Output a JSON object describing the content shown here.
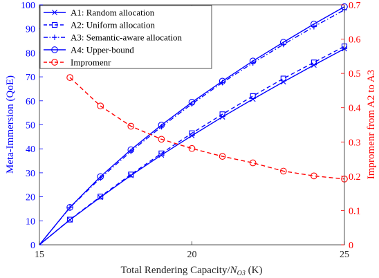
{
  "chart_data": {
    "type": "line",
    "xlabel_main": "Total Rendering Capacity/",
    "xlabel_var": "N",
    "xlabel_sub": "O3",
    "xlabel_unit": " (K)",
    "ylabel_left": "Meta-Immersion (QoE)",
    "ylabel_right": "Impromenr from A2 to A3",
    "xlim": [
      15,
      25
    ],
    "ylim_left": [
      0,
      100
    ],
    "ylim_right": [
      0,
      0.7
    ],
    "xticks": [
      "15",
      "20",
      "25"
    ],
    "yticks_left": [
      "0",
      "10",
      "20",
      "30",
      "40",
      "50",
      "60",
      "70",
      "80",
      "90",
      "100"
    ],
    "yticks_right": [
      "0",
      "0.1",
      "0.2",
      "0.3",
      "0.4",
      "0.5",
      "0.6",
      "0.7"
    ],
    "grid": false,
    "legend_position": "top-left",
    "x": [
      15,
      16,
      17,
      18,
      19,
      20,
      21,
      22,
      23,
      24,
      25
    ],
    "series": [
      {
        "name": "A1: Random allocation",
        "axis": "left",
        "color": "#0000ff",
        "dash": "solid",
        "marker": "x",
        "values": [
          0,
          10.4,
          19.8,
          28.9,
          37.4,
          45.5,
          53.3,
          60.7,
          67.9,
          74.9,
          81.7
        ]
      },
      {
        "name": "A2: Uniform allocation",
        "axis": "left",
        "color": "#0000ff",
        "dash": "dashed",
        "marker": "square",
        "values": [
          0,
          10.5,
          20.1,
          29.3,
          38.1,
          46.5,
          54.4,
          62.0,
          69.3,
          76.0,
          82.7
        ]
      },
      {
        "name": "A3: Semantic-aware allocation",
        "axis": "left",
        "color": "#0000ff",
        "dash": "dashdot",
        "marker": "plus",
        "values": [
          0,
          15.5,
          27.8,
          38.9,
          49.2,
          58.7,
          67.6,
          75.8,
          83.5,
          90.9,
          97.9
        ]
      },
      {
        "name": "A4: Upper-bound",
        "axis": "left",
        "color": "#0000ff",
        "dash": "solid",
        "marker": "circle",
        "values": [
          0,
          15.6,
          28.4,
          39.6,
          49.9,
          59.4,
          68.2,
          76.6,
          84.4,
          92.0,
          99.2
        ]
      },
      {
        "name": "Impromenr",
        "axis": "right",
        "color": "#ff0000",
        "dash": "dashed",
        "marker": "circle",
        "x": [
          16,
          17,
          18,
          19,
          20,
          21,
          22,
          23,
          24,
          25
        ],
        "values": [
          0.488,
          0.405,
          0.346,
          0.308,
          0.281,
          0.258,
          0.239,
          0.215,
          0.201,
          0.192
        ]
      }
    ]
  }
}
